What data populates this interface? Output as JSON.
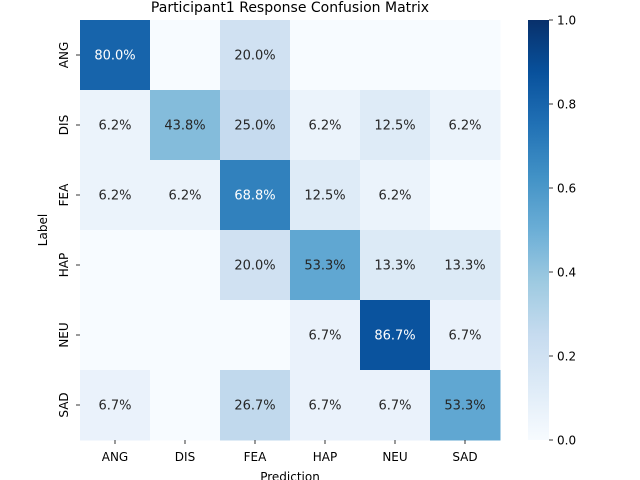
{
  "chart_data": {
    "type": "heatmap",
    "title": "Participant1 Response Confusion Matrix",
    "xlabel": "Prediction",
    "ylabel": "Label",
    "x_categories": [
      "ANG",
      "DIS",
      "FEA",
      "HAP",
      "NEU",
      "SAD"
    ],
    "y_categories": [
      "ANG",
      "DIS",
      "FEA",
      "HAP",
      "NEU",
      "SAD"
    ],
    "values": [
      [
        0.8,
        0.0,
        0.2,
        0.0,
        0.0,
        0.0
      ],
      [
        0.062,
        0.438,
        0.25,
        0.062,
        0.125,
        0.062
      ],
      [
        0.062,
        0.062,
        0.688,
        0.125,
        0.062,
        0.0
      ],
      [
        0.0,
        0.0,
        0.2,
        0.533,
        0.133,
        0.133
      ],
      [
        0.0,
        0.0,
        0.0,
        0.067,
        0.867,
        0.067
      ],
      [
        0.067,
        0.0,
        0.267,
        0.067,
        0.067,
        0.533
      ]
    ],
    "annotations": [
      [
        "80.0%",
        "",
        "20.0%",
        "",
        "",
        ""
      ],
      [
        "6.2%",
        "43.8%",
        "25.0%",
        "6.2%",
        "12.5%",
        "6.2%"
      ],
      [
        "6.2%",
        "6.2%",
        "68.8%",
        "12.5%",
        "6.2%",
        ""
      ],
      [
        "",
        "",
        "20.0%",
        "53.3%",
        "13.3%",
        "13.3%"
      ],
      [
        "",
        "",
        "",
        "6.7%",
        "86.7%",
        "6.7%"
      ],
      [
        "6.7%",
        "",
        "26.7%",
        "6.7%",
        "6.7%",
        "53.3%"
      ]
    ],
    "colormap": "Blues",
    "vmin": 0.0,
    "vmax": 1.0,
    "colorbar_ticks": [
      0.0,
      0.2,
      0.4,
      0.6,
      0.8,
      1.0
    ],
    "colorbar_tick_labels": [
      "0.0",
      "0.2",
      "0.4",
      "0.6",
      "0.8",
      "1.0"
    ],
    "grid": false,
    "legend": "colorbar-right"
  }
}
